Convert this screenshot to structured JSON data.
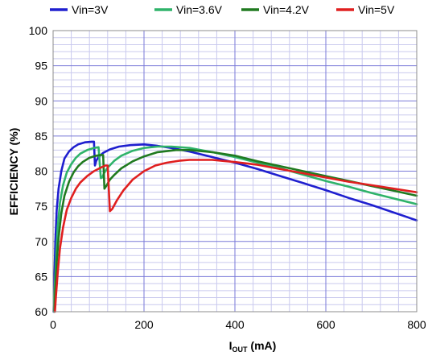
{
  "chart_data": {
    "type": "line",
    "xlabel_main": "I",
    "xlabel_sub": "OUT",
    "xlabel_unit": " (mA)",
    "ylabel": "EFFICIENCY (%)",
    "xlim": [
      0,
      800
    ],
    "ylim": [
      60,
      100
    ],
    "x_ticks": [
      0,
      200,
      400,
      600,
      800
    ],
    "y_ticks": [
      60,
      65,
      70,
      75,
      80,
      85,
      90,
      95,
      100
    ],
    "x_minor_step": 40,
    "y_minor_step": 1,
    "grid": true,
    "legend_position": "top",
    "series": [
      {
        "name": "Vin=3V",
        "color": "#1f1fcf",
        "x": [
          1,
          3,
          5,
          8,
          12,
          18,
          25,
          35,
          45,
          55,
          70,
          85,
          90,
          92,
          95,
          100,
          110,
          125,
          145,
          170,
          200,
          230,
          260,
          300,
          350,
          400,
          450,
          500,
          550,
          600,
          650,
          700,
          750,
          800
        ],
        "y": [
          60,
          65,
          70,
          74.5,
          77.5,
          80,
          81.8,
          82.8,
          83.4,
          83.8,
          84.1,
          84.2,
          84.2,
          80.8,
          81.5,
          82,
          82.6,
          83.1,
          83.5,
          83.7,
          83.8,
          83.6,
          83.3,
          82.8,
          82,
          81.2,
          80.3,
          79.3,
          78.3,
          77.3,
          76.2,
          75.2,
          74.1,
          73
        ]
      },
      {
        "name": "Vin=3.6V",
        "color": "#2fb36a",
        "x": [
          2,
          4,
          7,
          10,
          15,
          22,
          30,
          40,
          50,
          60,
          75,
          90,
          100,
          105,
          108,
          112,
          120,
          135,
          150,
          175,
          200,
          230,
          260,
          300,
          350,
          400,
          450,
          500,
          550,
          600,
          650,
          700,
          750,
          800
        ],
        "y": [
          60,
          64,
          68,
          72,
          75.5,
          78,
          79.8,
          81,
          81.9,
          82.5,
          83,
          83.3,
          83.4,
          79,
          79.1,
          79.7,
          80.5,
          81.5,
          82.2,
          82.9,
          83.3,
          83.5,
          83.5,
          83.3,
          82.7,
          82,
          81.2,
          80.4,
          79.5,
          78.6,
          77.8,
          76.9,
          76.1,
          75.3
        ]
      },
      {
        "name": "Vin=4.2V",
        "color": "#207a20",
        "x": [
          3,
          5,
          8,
          12,
          18,
          25,
          35,
          45,
          55,
          65,
          80,
          95,
          105,
          110,
          113,
          118,
          125,
          135,
          150,
          175,
          200,
          230,
          270,
          300,
          350,
          400,
          450,
          500,
          550,
          600,
          650,
          700,
          750,
          800
        ],
        "y": [
          60,
          63,
          67,
          70.5,
          74,
          76.5,
          78.5,
          79.8,
          80.7,
          81.3,
          81.9,
          82.2,
          82.3,
          82.3,
          77.5,
          78,
          78.8,
          79.5,
          80.4,
          81.4,
          82.1,
          82.7,
          83,
          83,
          82.7,
          82.2,
          81.4,
          80.7,
          80,
          79.3,
          78.6,
          77.9,
          77.2,
          76.5
        ]
      },
      {
        "name": "Vin=5V",
        "color": "#e01f1f",
        "x": [
          4,
          6,
          10,
          15,
          22,
          30,
          40,
          50,
          60,
          75,
          90,
          105,
          115,
          120,
          125,
          130,
          140,
          155,
          175,
          200,
          225,
          250,
          280,
          300,
          350,
          400,
          450,
          500,
          550,
          600,
          650,
          700,
          750,
          800
        ],
        "y": [
          60,
          62,
          65.5,
          69,
          72,
          74.5,
          76.2,
          77.5,
          78.4,
          79.3,
          80,
          80.5,
          80.8,
          80.8,
          74.3,
          74.6,
          75.8,
          77.3,
          78.8,
          80,
          80.8,
          81.2,
          81.5,
          81.6,
          81.6,
          81.3,
          80.9,
          80.3,
          79.7,
          79.1,
          78.5,
          78,
          77.5,
          77
        ]
      }
    ]
  }
}
